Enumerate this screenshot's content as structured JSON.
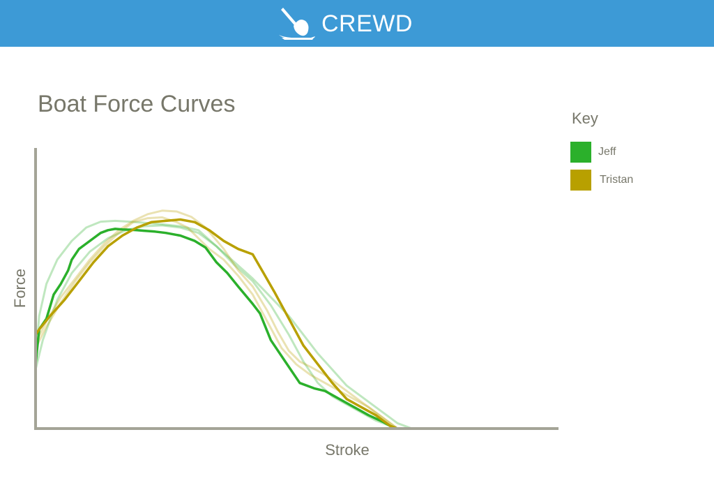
{
  "app": {
    "name": "CREWD",
    "logo_icon": "rowing-oar-icon",
    "header_color": "#3d9ad6"
  },
  "chart_data": {
    "type": "line",
    "title": "Boat Force Curves",
    "xlabel": "Stroke",
    "ylabel": "Force",
    "xlim": [
      0,
      100
    ],
    "ylim": [
      0,
      100
    ],
    "grid": false,
    "legend": {
      "title": "Key",
      "position": "top-right"
    },
    "series": [
      {
        "name": "Jeff",
        "color": "#2bb02b",
        "x": [
          0,
          1,
          3,
          5,
          7,
          9,
          10,
          12,
          14,
          16,
          18,
          20,
          22,
          24,
          26,
          28,
          30,
          33,
          36,
          40,
          44,
          47,
          50,
          53,
          56,
          60,
          62,
          65,
          69,
          73,
          77,
          80,
          86,
          92,
          96,
          98,
          100
        ],
        "y": [
          24,
          37,
          41,
          50,
          54,
          59,
          63,
          67,
          69,
          71,
          73,
          74,
          74.5,
          74.3,
          74.2,
          74,
          73.8,
          73.5,
          73,
          72,
          70,
          67.5,
          62,
          58,
          53,
          46.5,
          43,
          33,
          25,
          17,
          15,
          14,
          9.5,
          5,
          2.5,
          1,
          0
        ]
      },
      {
        "name": "Tristan",
        "color": "#b8a000",
        "x": [
          0,
          1,
          4,
          8,
          12,
          16,
          20,
          24,
          28,
          32,
          36,
          40,
          44,
          48,
          52,
          56,
          60,
          63,
          66,
          70,
          74,
          78,
          82,
          86,
          90,
          94,
          96,
          98,
          100
        ],
        "y": [
          35,
          37,
          42,
          48,
          55,
          62,
          68,
          72,
          75,
          77,
          77.5,
          78,
          77,
          74,
          70,
          67,
          65,
          58,
          51,
          41,
          31,
          24,
          17,
          11,
          8,
          5,
          3,
          1,
          0
        ]
      }
    ],
    "faded_series": [
      {
        "series": "Jeff",
        "x": [
          0,
          1,
          3,
          6,
          10,
          14,
          18,
          22,
          26,
          30,
          35,
          40,
          45,
          50,
          55,
          60,
          65,
          70,
          74,
          78,
          82,
          86,
          90,
          94,
          98,
          100
        ],
        "y": [
          25,
          42,
          54,
          63,
          70,
          75,
          77.2,
          77.5,
          77.2,
          76.8,
          76.2,
          75.5,
          74,
          68,
          61,
          55,
          46,
          35,
          25,
          17,
          12,
          9,
          6,
          3,
          1,
          0
        ]
      },
      {
        "series": "Jeff",
        "x": [
          0,
          2,
          6,
          10,
          15,
          20,
          25,
          30,
          35,
          40,
          45,
          50,
          55,
          60,
          65,
          70,
          74,
          78,
          82,
          86,
          90,
          94,
          98,
          100,
          102,
          104
        ],
        "y": [
          22,
          33,
          48,
          58,
          66,
          71,
          74,
          75.5,
          75.8,
          75,
          73,
          68,
          62,
          56,
          49,
          42,
          35,
          28,
          22,
          16,
          12,
          8,
          4,
          2,
          1,
          0
        ]
      },
      {
        "series": "Tristan",
        "x": [
          0,
          3,
          7,
          11,
          15,
          19,
          23,
          27,
          31,
          35,
          39,
          43,
          47,
          52,
          56,
          60,
          64,
          67,
          70,
          73,
          76,
          80,
          84,
          88,
          92,
          96,
          100
        ],
        "y": [
          32,
          40,
          49,
          56,
          63,
          69,
          74,
          77.5,
          80,
          81.3,
          81,
          79,
          75,
          67,
          59,
          53,
          44,
          36,
          29,
          25,
          23,
          20,
          16,
          12,
          8,
          4,
          0
        ]
      },
      {
        "series": "Tristan",
        "x": [
          0,
          3,
          7,
          11,
          15,
          19,
          23,
          27,
          31,
          35,
          39,
          42,
          45,
          48,
          52,
          56,
          60,
          64,
          68,
          72,
          76,
          80,
          84,
          88,
          92,
          96,
          100
        ],
        "y": [
          30,
          38,
          47,
          55,
          62,
          68,
          73,
          77,
          78.5,
          78.8,
          77,
          75,
          71,
          67,
          63,
          57,
          50,
          40,
          30,
          24,
          20,
          17,
          14,
          11,
          8,
          4,
          0
        ]
      }
    ]
  }
}
